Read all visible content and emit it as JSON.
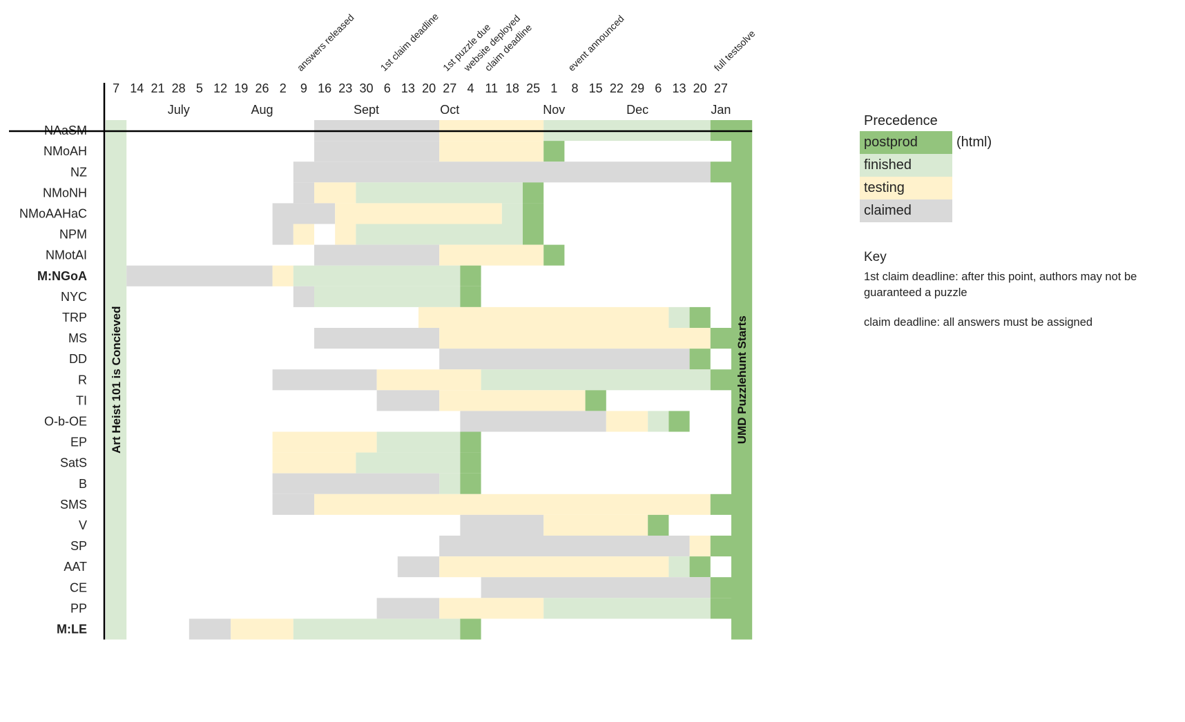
{
  "chart_data": {
    "type": "gantt",
    "x_ticks": [
      "7",
      "14",
      "21",
      "28",
      "5",
      "12",
      "19",
      "26",
      "2",
      "9",
      "16",
      "23",
      "30",
      "6",
      "13",
      "20",
      "27",
      "4",
      "11",
      "18",
      "25",
      "1",
      "8",
      "15",
      "22",
      "29",
      "6",
      "13",
      "20",
      "27"
    ],
    "months": [
      {
        "label": "July",
        "col": 3.5
      },
      {
        "label": "Aug",
        "col": 7.5
      },
      {
        "label": "Sept",
        "col": 12.5
      },
      {
        "label": "Oct",
        "col": 16.5
      },
      {
        "label": "Nov",
        "col": 21.5
      },
      {
        "label": "Dec",
        "col": 25.5
      },
      {
        "label": "Jan",
        "col": 29.5
      }
    ],
    "events": [
      {
        "label": "answers released",
        "col": 9.5
      },
      {
        "label": "1st claim deadline",
        "col": 13.5
      },
      {
        "label": "1st puzzle due",
        "col": 16.5
      },
      {
        "label": "website deployed",
        "col": 17.5
      },
      {
        "label": "claim deadline",
        "col": 18.5
      },
      {
        "label": "event announced",
        "col": 22.5
      },
      {
        "label": "full testsolve",
        "col": 29.5
      }
    ],
    "rows": [
      {
        "label": "NAaSM",
        "bold": false,
        "segments": [
          {
            "status": "claimed",
            "start": 10,
            "end": 16
          },
          {
            "status": "testing",
            "start": 16,
            "end": 21
          },
          {
            "status": "finished",
            "start": 21,
            "end": 29
          },
          {
            "status": "postprod",
            "start": 29,
            "end": 30
          }
        ]
      },
      {
        "label": "NMoAH",
        "bold": false,
        "segments": [
          {
            "status": "claimed",
            "start": 10,
            "end": 16
          },
          {
            "status": "testing",
            "start": 16,
            "end": 21
          },
          {
            "status": "postprod",
            "start": 21,
            "end": 22
          }
        ]
      },
      {
        "label": "NZ",
        "bold": false,
        "segments": [
          {
            "status": "claimed",
            "start": 9,
            "end": 29
          },
          {
            "status": "postprod",
            "start": 29,
            "end": 30
          }
        ]
      },
      {
        "label": "NMoNH",
        "bold": false,
        "segments": [
          {
            "status": "claimed",
            "start": 9,
            "end": 10
          },
          {
            "status": "testing",
            "start": 10,
            "end": 12
          },
          {
            "status": "finished",
            "start": 12,
            "end": 20
          },
          {
            "status": "postprod",
            "start": 20,
            "end": 21
          }
        ]
      },
      {
        "label": "NMoAAHaC",
        "bold": false,
        "segments": [
          {
            "status": "claimed",
            "start": 8,
            "end": 11
          },
          {
            "status": "testing",
            "start": 11,
            "end": 19
          },
          {
            "status": "finished",
            "start": 19,
            "end": 20
          },
          {
            "status": "postprod",
            "start": 20,
            "end": 21
          }
        ]
      },
      {
        "label": "NPM",
        "bold": false,
        "segments": [
          {
            "status": "claimed",
            "start": 8,
            "end": 9
          },
          {
            "status": "testing",
            "start": 9,
            "end": 10
          },
          {
            "status": "testing",
            "start": 11,
            "end": 12
          },
          {
            "status": "finished",
            "start": 12,
            "end": 20
          },
          {
            "status": "postprod",
            "start": 20,
            "end": 21
          }
        ]
      },
      {
        "label": "NMotAI",
        "bold": false,
        "segments": [
          {
            "status": "claimed",
            "start": 10,
            "end": 16
          },
          {
            "status": "testing",
            "start": 16,
            "end": 21
          },
          {
            "status": "postprod",
            "start": 21,
            "end": 22
          }
        ]
      },
      {
        "label": "M:NGoA",
        "bold": true,
        "segments": [
          {
            "status": "claimed",
            "start": 1,
            "end": 8
          },
          {
            "status": "testing",
            "start": 8,
            "end": 9
          },
          {
            "status": "finished",
            "start": 9,
            "end": 17
          },
          {
            "status": "postprod",
            "start": 17,
            "end": 18
          }
        ]
      },
      {
        "label": "NYC",
        "bold": false,
        "segments": [
          {
            "status": "claimed",
            "start": 9,
            "end": 10
          },
          {
            "status": "finished",
            "start": 10,
            "end": 17
          },
          {
            "status": "postprod",
            "start": 17,
            "end": 18
          }
        ]
      },
      {
        "label": "TRP",
        "bold": false,
        "segments": [
          {
            "status": "testing",
            "start": 15,
            "end": 27
          },
          {
            "status": "finished",
            "start": 27,
            "end": 28
          },
          {
            "status": "postprod",
            "start": 28,
            "end": 29
          }
        ]
      },
      {
        "label": "MS",
        "bold": false,
        "segments": [
          {
            "status": "claimed",
            "start": 10,
            "end": 16
          },
          {
            "status": "testing",
            "start": 16,
            "end": 29
          },
          {
            "status": "postprod",
            "start": 29,
            "end": 30
          }
        ]
      },
      {
        "label": "DD",
        "bold": false,
        "segments": [
          {
            "status": "claimed",
            "start": 16,
            "end": 28
          },
          {
            "status": "postprod",
            "start": 28,
            "end": 29
          }
        ]
      },
      {
        "label": "R",
        "bold": false,
        "segments": [
          {
            "status": "claimed",
            "start": 8,
            "end": 13
          },
          {
            "status": "testing",
            "start": 13,
            "end": 18
          },
          {
            "status": "finished",
            "start": 18,
            "end": 29
          },
          {
            "status": "postprod",
            "start": 29,
            "end": 30
          }
        ]
      },
      {
        "label": "TI",
        "bold": false,
        "segments": [
          {
            "status": "claimed",
            "start": 13,
            "end": 16
          },
          {
            "status": "testing",
            "start": 16,
            "end": 23
          },
          {
            "status": "postprod",
            "start": 23,
            "end": 24
          }
        ]
      },
      {
        "label": "O-b-OE",
        "bold": false,
        "segments": [
          {
            "status": "claimed",
            "start": 17,
            "end": 24
          },
          {
            "status": "testing",
            "start": 24,
            "end": 26
          },
          {
            "status": "finished",
            "start": 26,
            "end": 27
          },
          {
            "status": "postprod",
            "start": 27,
            "end": 28
          }
        ]
      },
      {
        "label": "EP",
        "bold": false,
        "segments": [
          {
            "status": "testing",
            "start": 8,
            "end": 13
          },
          {
            "status": "finished",
            "start": 13,
            "end": 17
          },
          {
            "status": "postprod",
            "start": 17,
            "end": 18
          }
        ]
      },
      {
        "label": "SatS",
        "bold": false,
        "segments": [
          {
            "status": "testing",
            "start": 8,
            "end": 12
          },
          {
            "status": "finished",
            "start": 12,
            "end": 17
          },
          {
            "status": "postprod",
            "start": 17,
            "end": 18
          }
        ]
      },
      {
        "label": "B",
        "bold": false,
        "segments": [
          {
            "status": "claimed",
            "start": 8,
            "end": 16
          },
          {
            "status": "finished",
            "start": 16,
            "end": 17
          },
          {
            "status": "postprod",
            "start": 17,
            "end": 18
          }
        ]
      },
      {
        "label": "SMS",
        "bold": false,
        "segments": [
          {
            "status": "claimed",
            "start": 8,
            "end": 10
          },
          {
            "status": "testing",
            "start": 10,
            "end": 29
          },
          {
            "status": "postprod",
            "start": 29,
            "end": 30
          }
        ]
      },
      {
        "label": "V",
        "bold": false,
        "segments": [
          {
            "status": "claimed",
            "start": 17,
            "end": 21
          },
          {
            "status": "testing",
            "start": 21,
            "end": 26
          },
          {
            "status": "postprod",
            "start": 26,
            "end": 27
          }
        ]
      },
      {
        "label": "SP",
        "bold": false,
        "segments": [
          {
            "status": "claimed",
            "start": 16,
            "end": 28
          },
          {
            "status": "testing",
            "start": 28,
            "end": 29
          },
          {
            "status": "postprod",
            "start": 29,
            "end": 30
          }
        ]
      },
      {
        "label": "AAT",
        "bold": false,
        "segments": [
          {
            "status": "claimed",
            "start": 14,
            "end": 16
          },
          {
            "status": "testing",
            "start": 16,
            "end": 27
          },
          {
            "status": "finished",
            "start": 27,
            "end": 28
          },
          {
            "status": "postprod",
            "start": 28,
            "end": 29
          }
        ]
      },
      {
        "label": "CE",
        "bold": false,
        "segments": [
          {
            "status": "claimed",
            "start": 18,
            "end": 29
          },
          {
            "status": "postprod",
            "start": 29,
            "end": 30
          }
        ]
      },
      {
        "label": "PP",
        "bold": false,
        "segments": [
          {
            "status": "claimed",
            "start": 13,
            "end": 16
          },
          {
            "status": "testing",
            "start": 16,
            "end": 21
          },
          {
            "status": "finished",
            "start": 21,
            "end": 29
          },
          {
            "status": "postprod",
            "start": 29,
            "end": 30
          }
        ]
      },
      {
        "label": "M:LE",
        "bold": true,
        "segments": [
          {
            "status": "claimed",
            "start": 4,
            "end": 6
          },
          {
            "status": "testing",
            "start": 6,
            "end": 9
          },
          {
            "status": "finished",
            "start": 9,
            "end": 17
          },
          {
            "status": "postprod",
            "start": 17,
            "end": 18
          }
        ]
      }
    ],
    "milestone_columns": [
      {
        "label": "Art Heist 101 is Concieved",
        "col": 0,
        "status": "finished"
      },
      {
        "label": "UMD Puzzlehunt Starts",
        "col": 30,
        "status": "postprod"
      }
    ]
  },
  "colors": {
    "postprod": "#93c47d",
    "finished": "#d9ead3",
    "testing": "#fff2cc",
    "claimed": "#d9d9d9"
  },
  "legend": {
    "title": "Precedence",
    "items": [
      {
        "status": "postprod",
        "label": "postprod",
        "note": "(html)"
      },
      {
        "status": "finished",
        "label": "finished",
        "note": ""
      },
      {
        "status": "testing",
        "label": "testing",
        "note": ""
      },
      {
        "status": "claimed",
        "label": "claimed",
        "note": ""
      }
    ]
  },
  "key": {
    "title": "Key",
    "items": [
      "1st claim deadline: after this point, authors may not be guaranteed a puzzle",
      "claim deadline: all answers must be assigned"
    ]
  }
}
